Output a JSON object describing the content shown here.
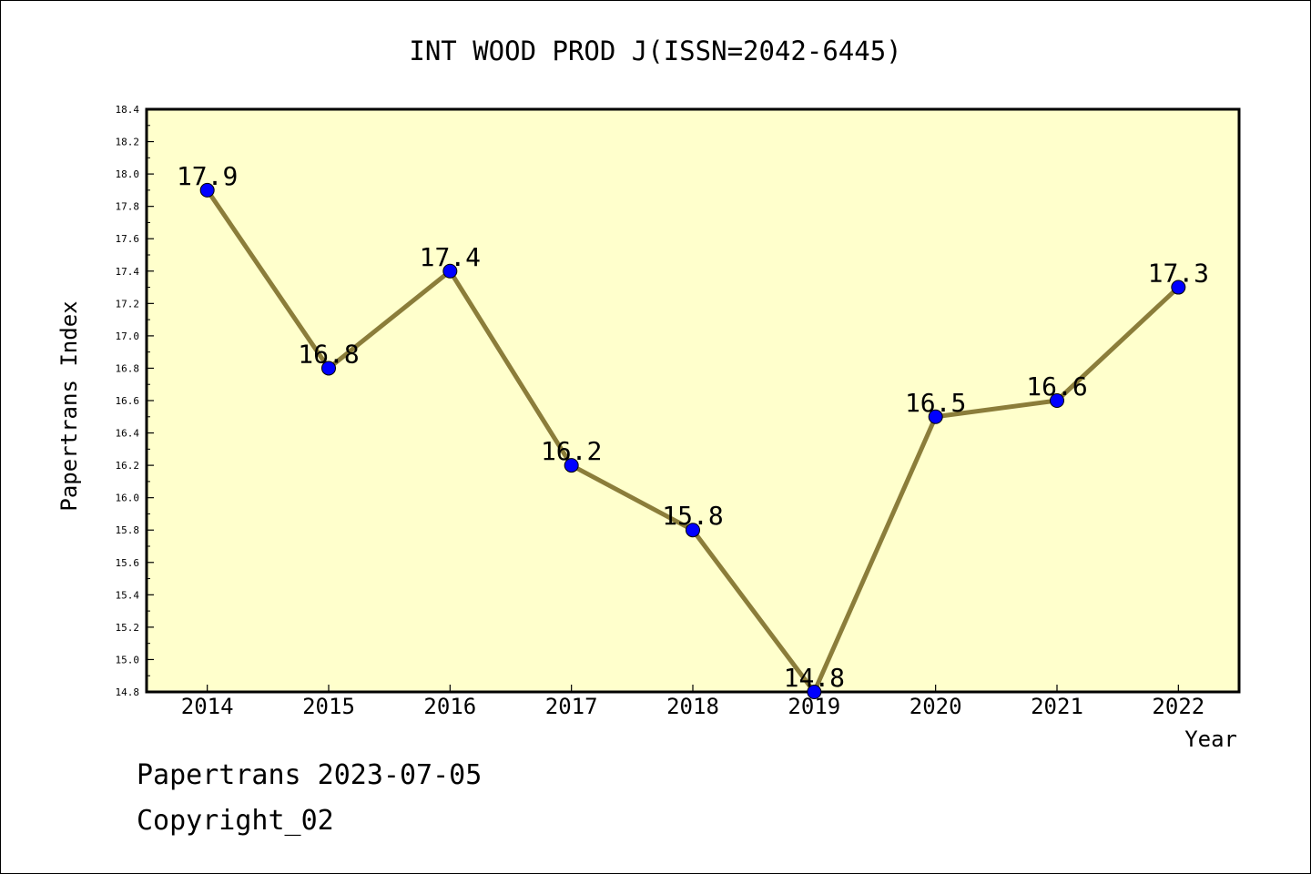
{
  "chart_data": {
    "type": "line",
    "title": "INT WOOD PROD J(ISSN=2042-6445)",
    "xlabel": "Year",
    "ylabel": "Papertrans Index",
    "categories": [
      "2014",
      "2015",
      "2016",
      "2017",
      "2018",
      "2019",
      "2020",
      "2021",
      "2022"
    ],
    "series": [
      {
        "values": [
          17.9,
          16.8,
          17.4,
          16.2,
          15.8,
          14.8,
          16.5,
          16.6,
          17.3
        ]
      }
    ],
    "data_labels": [
      "17.9",
      "16.8",
      "17.4",
      "16.2",
      "15.8",
      "14.8",
      "16.5",
      "16.6",
      "17.3"
    ],
    "ylim": [
      14.8,
      18.4
    ],
    "yticks": [
      "14.8",
      "15.0",
      "15.2",
      "15.4",
      "15.6",
      "15.8",
      "16.0",
      "16.2",
      "16.4",
      "16.6",
      "16.8",
      "17.0",
      "17.2",
      "17.4",
      "17.6",
      "17.8",
      "18.0",
      "18.2",
      "18.4"
    ],
    "grid": false,
    "colors": {
      "plot_background": "#ffffcc",
      "line": "#8b7d3a",
      "marker": "#0000ff"
    }
  },
  "footer": {
    "date_line": "Papertrans 2023-07-05",
    "copyright_line": "Copyright_02"
  }
}
